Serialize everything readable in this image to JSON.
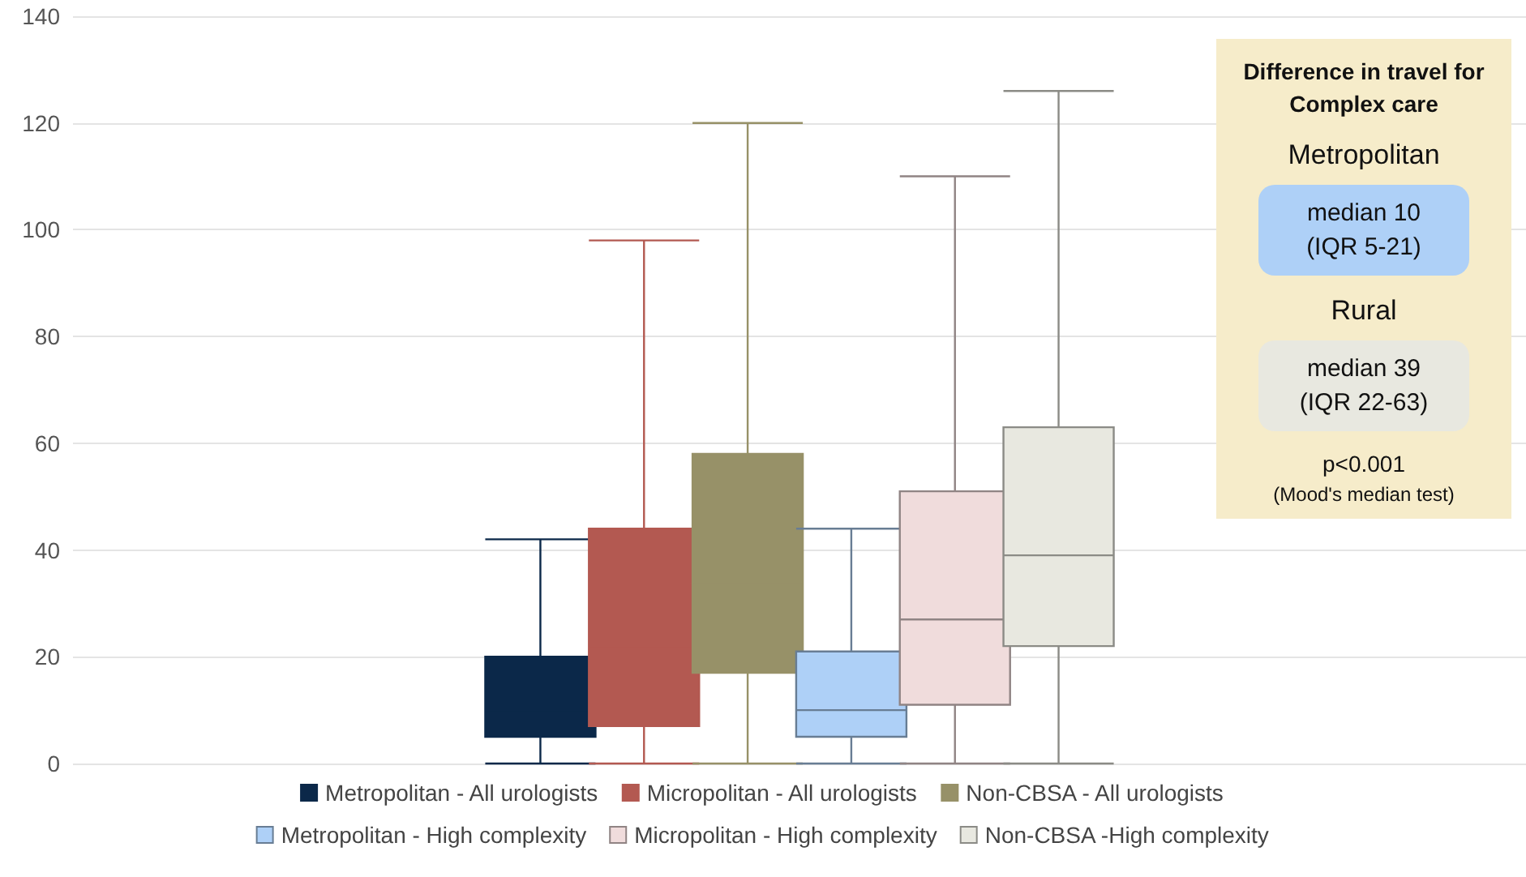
{
  "chart_data": {
    "type": "box",
    "categories": [
      null
    ],
    "series": [
      {
        "name": "Metropolitan - All urologists",
        "color": "#0b2849",
        "boxes": [
          {
            "low": 0,
            "q1": 5,
            "median": 10,
            "q3": 20,
            "high": 42
          }
        ]
      },
      {
        "name": "Micropolitan - All urologists",
        "color": "#b35951",
        "boxes": [
          {
            "low": 0,
            "q1": 7,
            "median": 22,
            "q3": 44,
            "high": 98
          }
        ]
      },
      {
        "name": "Non-CBSA - All urologists",
        "color": "#979168",
        "boxes": [
          {
            "low": 0,
            "q1": 17,
            "median": 34,
            "q3": 58,
            "high": 120
          }
        ]
      },
      {
        "name": "Metropolitan - High complexity",
        "color": "#aed0f7",
        "boxes": [
          {
            "low": 0,
            "q1": 5,
            "median": 10,
            "q3": 21,
            "high": 44
          }
        ]
      },
      {
        "name": "Micropolitan - High complexity",
        "color": "#f0dcdc",
        "boxes": [
          {
            "low": 0,
            "q1": 11,
            "median": 27,
            "q3": 51,
            "high": 110
          }
        ]
      },
      {
        "name": "Non-CBSA -High complexity",
        "color": "#e8e8e0",
        "boxes": [
          {
            "low": 0,
            "q1": 22,
            "median": 39,
            "q3": 63,
            "high": 126
          }
        ]
      }
    ],
    "ylim": [
      0,
      140
    ],
    "yticks": [
      0,
      20,
      40,
      60,
      80,
      100,
      120,
      140
    ],
    "grid": "y",
    "legend": "bottom",
    "tick_labels": "y",
    "annotations": [
      "Difference in travel for Complex care",
      "Metropolitan",
      "median 10 (IQR 5-21)",
      "Rural",
      "median 39 (IQR 22-63)",
      "p<0.001",
      "(Mood's median test)"
    ]
  }
}
